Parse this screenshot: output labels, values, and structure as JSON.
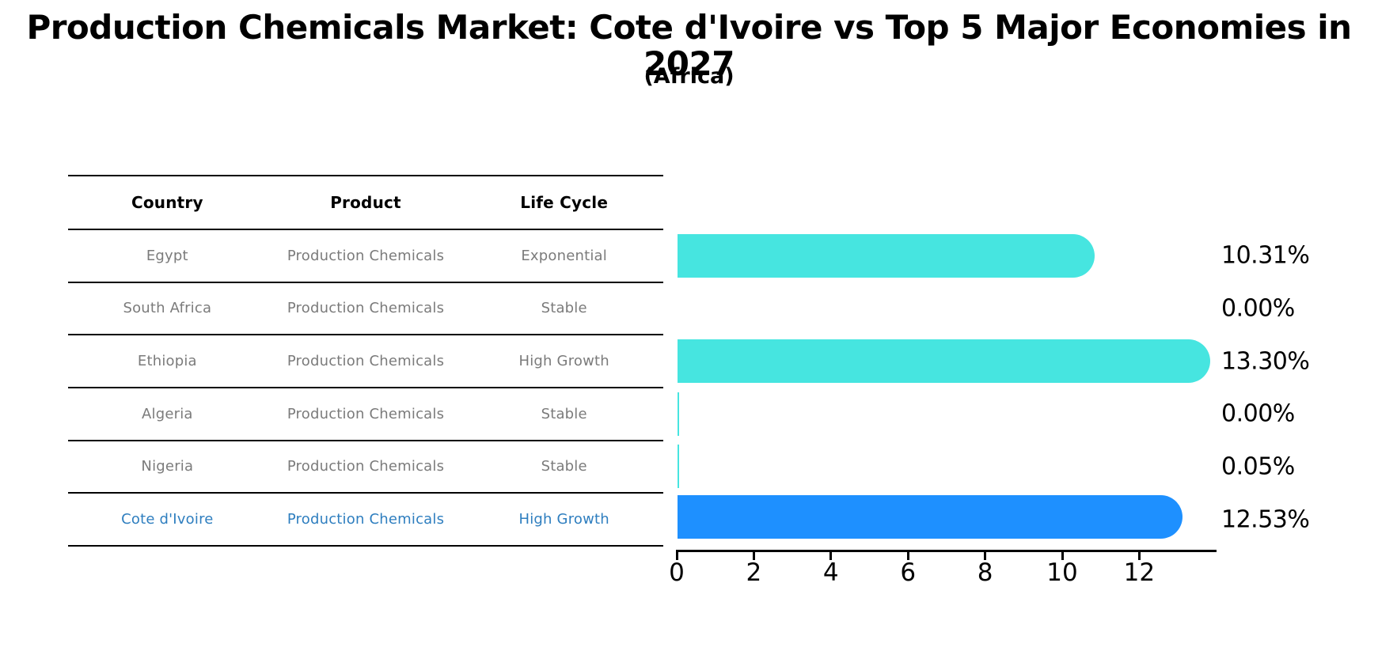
{
  "title": "Production Chemicals Market: Cote d'Ivoire vs Top 5 Major Economies in 2027",
  "subtitle": "(Africa)",
  "table": {
    "headers": [
      "Country",
      "Product",
      "Life Cycle"
    ],
    "rows": [
      {
        "country": "Egypt",
        "product": "Production Chemicals",
        "life_cycle": "Exponential"
      },
      {
        "country": "South Africa",
        "product": "Production Chemicals",
        "life_cycle": "Stable"
      },
      {
        "country": "Ethiopia",
        "product": "Production Chemicals",
        "life_cycle": "High Growth"
      },
      {
        "country": "Algeria",
        "product": "Production Chemicals",
        "life_cycle": "Stable"
      },
      {
        "country": "Nigeria",
        "product": "Production Chemicals",
        "life_cycle": "Stable"
      },
      {
        "country": "Cote d'Ivoire",
        "product": "Production Chemicals",
        "life_cycle": "High Growth"
      }
    ]
  },
  "chart_data": {
    "type": "bar",
    "orientation": "horizontal",
    "categories": [
      "Egypt",
      "South Africa",
      "Ethiopia",
      "Algeria",
      "Nigeria",
      "Cote d'Ivoire"
    ],
    "values": [
      10.31,
      0.0,
      13.3,
      0.0,
      0.05,
      12.53
    ],
    "value_labels": [
      "10.31%",
      "0.00%",
      "13.30%",
      "0.00%",
      "0.05%",
      "12.53%"
    ],
    "x_ticks": [
      0,
      2,
      4,
      6,
      8,
      10,
      12
    ],
    "xlim": [
      0,
      14
    ],
    "grid": false,
    "highlight_index": 5,
    "bar_color": "#46e5e0",
    "highlight_color": "#1e90ff"
  },
  "colors": {
    "title_text": "#000000",
    "cell_text": "#7b7b7b",
    "highlight_row_text": "#2e7ebf",
    "table_border": "#000000",
    "axis": "#000000"
  }
}
